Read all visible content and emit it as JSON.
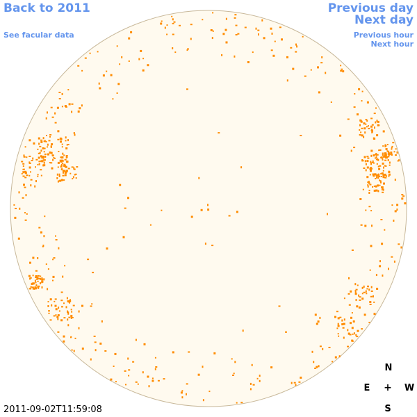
{
  "nav": {
    "back_label": "Back to 2011",
    "facular_label": "See facular data",
    "prev_day_label": "Previous day",
    "next_day_label": "Next day",
    "prev_hour_label": "Previous hour",
    "next_hour_label": "Next hour"
  },
  "compass": {
    "north": "N",
    "east": "E",
    "center": "+",
    "west": "W",
    "south": "S"
  },
  "timestamp": "2011-09-02T11:59:08",
  "colors": {
    "link": "#6495ed",
    "disk_fill": "#fffaef",
    "disk_edge": "#c8b89a",
    "facula": "#ff8c00"
  }
}
